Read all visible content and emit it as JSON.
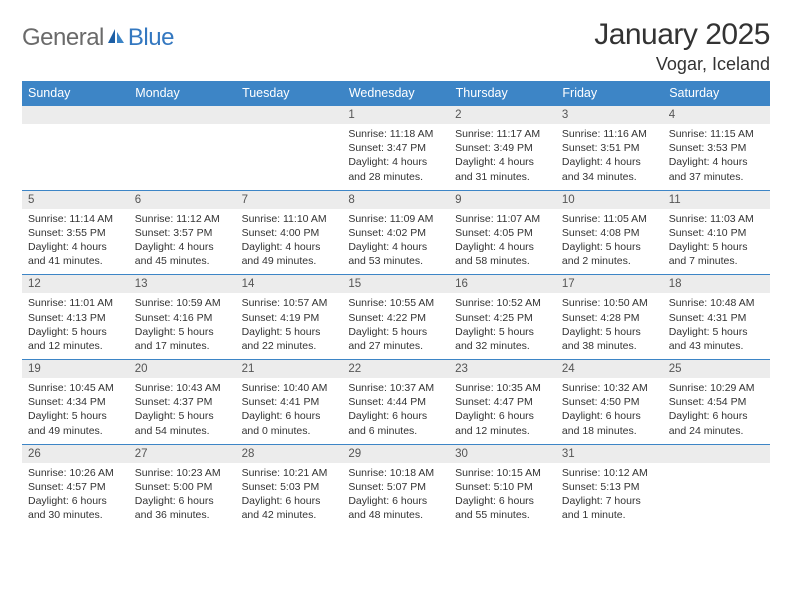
{
  "brand": {
    "word1": "General",
    "word2": "Blue"
  },
  "title": "January 2025",
  "location": "Vogar, Iceland",
  "colors": {
    "header_bg": "#3d85c6",
    "header_text": "#ffffff",
    "daynum_bg": "#ececec",
    "daynum_text": "#555555",
    "cell_text": "#333333",
    "rule": "#3d85c6",
    "logo_gray": "#6a6a6a",
    "logo_blue": "#3478c0"
  },
  "day_headers": [
    "Sunday",
    "Monday",
    "Tuesday",
    "Wednesday",
    "Thursday",
    "Friday",
    "Saturday"
  ],
  "weeks": [
    {
      "nums": [
        "",
        "",
        "",
        "1",
        "2",
        "3",
        "4"
      ],
      "cells": [
        [],
        [],
        [],
        [
          "Sunrise: 11:18 AM",
          "Sunset: 3:47 PM",
          "Daylight: 4 hours",
          "and 28 minutes."
        ],
        [
          "Sunrise: 11:17 AM",
          "Sunset: 3:49 PM",
          "Daylight: 4 hours",
          "and 31 minutes."
        ],
        [
          "Sunrise: 11:16 AM",
          "Sunset: 3:51 PM",
          "Daylight: 4 hours",
          "and 34 minutes."
        ],
        [
          "Sunrise: 11:15 AM",
          "Sunset: 3:53 PM",
          "Daylight: 4 hours",
          "and 37 minutes."
        ]
      ]
    },
    {
      "nums": [
        "5",
        "6",
        "7",
        "8",
        "9",
        "10",
        "11"
      ],
      "cells": [
        [
          "Sunrise: 11:14 AM",
          "Sunset: 3:55 PM",
          "Daylight: 4 hours",
          "and 41 minutes."
        ],
        [
          "Sunrise: 11:12 AM",
          "Sunset: 3:57 PM",
          "Daylight: 4 hours",
          "and 45 minutes."
        ],
        [
          "Sunrise: 11:10 AM",
          "Sunset: 4:00 PM",
          "Daylight: 4 hours",
          "and 49 minutes."
        ],
        [
          "Sunrise: 11:09 AM",
          "Sunset: 4:02 PM",
          "Daylight: 4 hours",
          "and 53 minutes."
        ],
        [
          "Sunrise: 11:07 AM",
          "Sunset: 4:05 PM",
          "Daylight: 4 hours",
          "and 58 minutes."
        ],
        [
          "Sunrise: 11:05 AM",
          "Sunset: 4:08 PM",
          "Daylight: 5 hours",
          "and 2 minutes."
        ],
        [
          "Sunrise: 11:03 AM",
          "Sunset: 4:10 PM",
          "Daylight: 5 hours",
          "and 7 minutes."
        ]
      ]
    },
    {
      "nums": [
        "12",
        "13",
        "14",
        "15",
        "16",
        "17",
        "18"
      ],
      "cells": [
        [
          "Sunrise: 11:01 AM",
          "Sunset: 4:13 PM",
          "Daylight: 5 hours",
          "and 12 minutes."
        ],
        [
          "Sunrise: 10:59 AM",
          "Sunset: 4:16 PM",
          "Daylight: 5 hours",
          "and 17 minutes."
        ],
        [
          "Sunrise: 10:57 AM",
          "Sunset: 4:19 PM",
          "Daylight: 5 hours",
          "and 22 minutes."
        ],
        [
          "Sunrise: 10:55 AM",
          "Sunset: 4:22 PM",
          "Daylight: 5 hours",
          "and 27 minutes."
        ],
        [
          "Sunrise: 10:52 AM",
          "Sunset: 4:25 PM",
          "Daylight: 5 hours",
          "and 32 minutes."
        ],
        [
          "Sunrise: 10:50 AM",
          "Sunset: 4:28 PM",
          "Daylight: 5 hours",
          "and 38 minutes."
        ],
        [
          "Sunrise: 10:48 AM",
          "Sunset: 4:31 PM",
          "Daylight: 5 hours",
          "and 43 minutes."
        ]
      ]
    },
    {
      "nums": [
        "19",
        "20",
        "21",
        "22",
        "23",
        "24",
        "25"
      ],
      "cells": [
        [
          "Sunrise: 10:45 AM",
          "Sunset: 4:34 PM",
          "Daylight: 5 hours",
          "and 49 minutes."
        ],
        [
          "Sunrise: 10:43 AM",
          "Sunset: 4:37 PM",
          "Daylight: 5 hours",
          "and 54 minutes."
        ],
        [
          "Sunrise: 10:40 AM",
          "Sunset: 4:41 PM",
          "Daylight: 6 hours",
          "and 0 minutes."
        ],
        [
          "Sunrise: 10:37 AM",
          "Sunset: 4:44 PM",
          "Daylight: 6 hours",
          "and 6 minutes."
        ],
        [
          "Sunrise: 10:35 AM",
          "Sunset: 4:47 PM",
          "Daylight: 6 hours",
          "and 12 minutes."
        ],
        [
          "Sunrise: 10:32 AM",
          "Sunset: 4:50 PM",
          "Daylight: 6 hours",
          "and 18 minutes."
        ],
        [
          "Sunrise: 10:29 AM",
          "Sunset: 4:54 PM",
          "Daylight: 6 hours",
          "and 24 minutes."
        ]
      ]
    },
    {
      "nums": [
        "26",
        "27",
        "28",
        "29",
        "30",
        "31",
        ""
      ],
      "cells": [
        [
          "Sunrise: 10:26 AM",
          "Sunset: 4:57 PM",
          "Daylight: 6 hours",
          "and 30 minutes."
        ],
        [
          "Sunrise: 10:23 AM",
          "Sunset: 5:00 PM",
          "Daylight: 6 hours",
          "and 36 minutes."
        ],
        [
          "Sunrise: 10:21 AM",
          "Sunset: 5:03 PM",
          "Daylight: 6 hours",
          "and 42 minutes."
        ],
        [
          "Sunrise: 10:18 AM",
          "Sunset: 5:07 PM",
          "Daylight: 6 hours",
          "and 48 minutes."
        ],
        [
          "Sunrise: 10:15 AM",
          "Sunset: 5:10 PM",
          "Daylight: 6 hours",
          "and 55 minutes."
        ],
        [
          "Sunrise: 10:12 AM",
          "Sunset: 5:13 PM",
          "Daylight: 7 hours",
          "and 1 minute."
        ],
        []
      ]
    }
  ]
}
